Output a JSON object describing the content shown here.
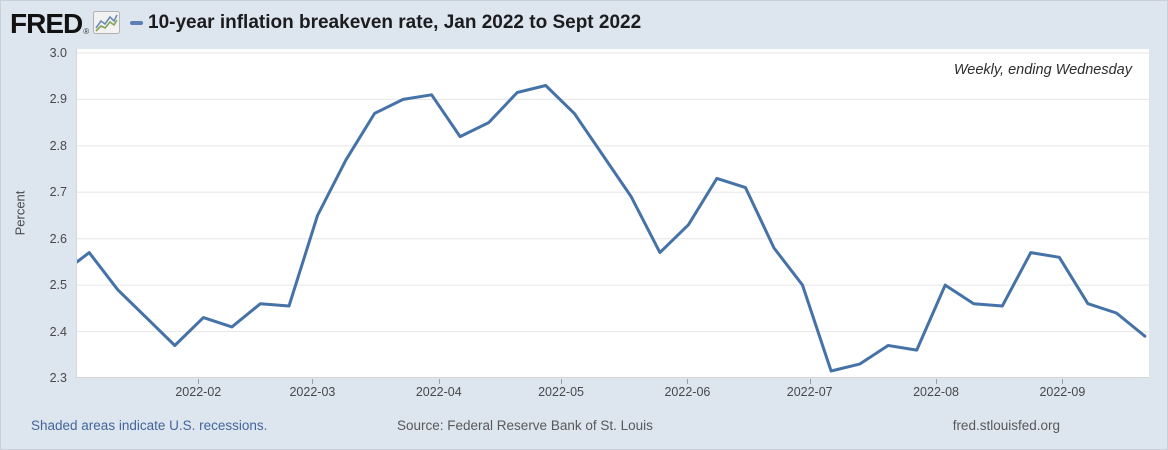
{
  "header": {
    "logo_text": "FRED",
    "registered_mark": "®",
    "title": "10-year inflation breakeven rate, Jan 2022 to Sept 2022"
  },
  "plot": {
    "frequency_note": "Weekly, ending Wednesday",
    "y_axis_title": "Percent"
  },
  "footer": {
    "recessions_note": "Shaded areas indicate U.S. recessions.",
    "source": "Source: Federal Reserve Bank of St. Louis",
    "website": "fred.stlouisfed.org"
  },
  "colors": {
    "background": "#dde5ee",
    "plot_background": "#ffffff",
    "line": "#4572a7",
    "legend_dash": "#5b7fb6",
    "grid": "#e6e6e6",
    "axis_line": "#d6d6d6",
    "tick_text": "#49494d",
    "tick_mark": "#9aa0a8",
    "title_text": "#1c1c1e",
    "link_blue": "#44659b",
    "footer_gray": "#58595b"
  },
  "chart_data": {
    "type": "line",
    "title": "10-year inflation breakeven rate, Jan 2022 to Sept 2022",
    "ylabel": "Percent",
    "ylim": [
      2.3,
      3.0
    ],
    "yticks": [
      "3.0",
      "2.9",
      "2.8",
      "2.7",
      "2.6",
      "2.5",
      "2.4",
      "2.3"
    ],
    "grid": "horizontal",
    "legend_position": "dash marker left of title",
    "x_range": {
      "start": "2022-01-02",
      "end": "2022-09-22",
      "days": 263
    },
    "xticks": [
      {
        "label": "2022-02",
        "day": 30
      },
      {
        "label": "2022-03",
        "day": 58
      },
      {
        "label": "2022-04",
        "day": 89
      },
      {
        "label": "2022-05",
        "day": 119
      },
      {
        "label": "2022-06",
        "day": 150
      },
      {
        "label": "2022-07",
        "day": 180
      },
      {
        "label": "2022-08",
        "day": 211
      },
      {
        "label": "2022-09",
        "day": 242
      }
    ],
    "left_edge_clip_point": {
      "day": 0,
      "value": 2.55
    },
    "series": [
      {
        "name": "10-year inflation breakeven rate",
        "frequency": "Weekly, ending Wednesday",
        "units": "Percent",
        "dates": [
          "2022-01-05",
          "2022-01-12",
          "2022-01-19",
          "2022-01-26",
          "2022-02-02",
          "2022-02-09",
          "2022-02-16",
          "2022-02-23",
          "2022-03-02",
          "2022-03-09",
          "2022-03-16",
          "2022-03-23",
          "2022-03-30",
          "2022-04-06",
          "2022-04-13",
          "2022-04-20",
          "2022-04-27",
          "2022-05-04",
          "2022-05-11",
          "2022-05-18",
          "2022-05-25",
          "2022-06-01",
          "2022-06-08",
          "2022-06-15",
          "2022-06-22",
          "2022-06-29",
          "2022-07-06",
          "2022-07-13",
          "2022-07-20",
          "2022-07-27",
          "2022-08-03",
          "2022-08-10",
          "2022-08-17",
          "2022-08-24",
          "2022-08-31",
          "2022-09-07",
          "2022-09-14",
          "2022-09-21"
        ],
        "day_offsets": [
          3,
          10,
          17,
          24,
          31,
          38,
          45,
          52,
          59,
          66,
          73,
          80,
          87,
          94,
          101,
          108,
          115,
          122,
          129,
          136,
          143,
          150,
          157,
          164,
          171,
          178,
          185,
          192,
          199,
          206,
          213,
          220,
          227,
          234,
          241,
          248,
          255,
          262
        ],
        "values": [
          2.57,
          2.49,
          2.43,
          2.37,
          2.43,
          2.41,
          2.46,
          2.455,
          2.65,
          2.77,
          2.87,
          2.9,
          2.91,
          2.82,
          2.85,
          2.915,
          2.93,
          2.87,
          2.78,
          2.69,
          2.57,
          2.63,
          2.73,
          2.71,
          2.58,
          2.5,
          2.315,
          2.33,
          2.37,
          2.36,
          2.5,
          2.46,
          2.455,
          2.57,
          2.56,
          2.46,
          2.44,
          2.39
        ]
      }
    ]
  }
}
